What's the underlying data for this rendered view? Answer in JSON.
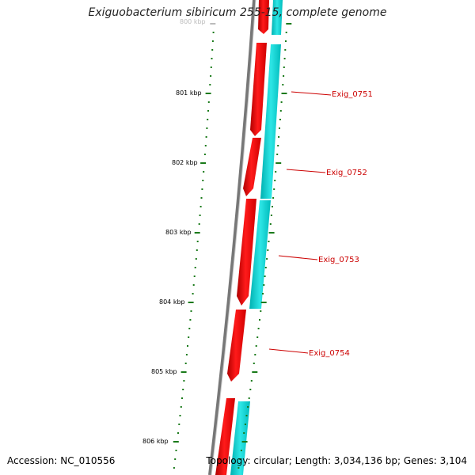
{
  "title": "Exiguobacterium sibiricum 255-15, complete genome",
  "footer": {
    "accession": "Accession: NC_010556",
    "summary": "Topology: circular; Length: 3,034,136 bp; Genes: 3,104"
  },
  "ruler": {
    "labels": [
      "800 kbp",
      "801 kbp",
      "802 kbp",
      "803 kbp",
      "804 kbp",
      "805 kbp",
      "806 kbp"
    ]
  },
  "genes": {
    "labels": [
      "Exig_0751",
      "Exig_0752",
      "Exig_0753",
      "Exig_0754"
    ]
  },
  "colors": {
    "forward": "#ff0000",
    "forward_dark": "#c00000",
    "reverse": "#00cccc",
    "backbone": "#777777",
    "ticks": "#1a7a1a",
    "label": "#cc0000"
  }
}
